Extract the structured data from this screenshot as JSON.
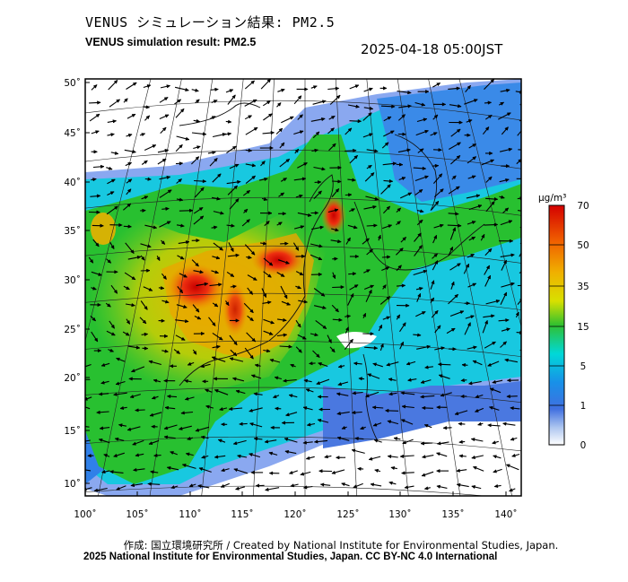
{
  "title_jp": "VENUS シミュレーション結果: PM2.5",
  "title_en": "VENUS simulation result: PM2.5",
  "timestamp": "2025-04-18 05:00JST",
  "credit_line1": "作成: 国立環境研究所 / Created by National Institute for Environmental Studies, Japan.",
  "credit_line2": "2025 National Institute for Environmental Studies, Japan. CC BY-NC 4.0 International",
  "colorbar": {
    "unit": "μg/m³",
    "ticks": [
      "70",
      "50",
      "35",
      "15",
      "5",
      "1",
      "0"
    ],
    "colors": [
      "#d40000",
      "#f07000",
      "#f0d000",
      "#20c020",
      "#00d8e8",
      "#2080f0",
      "#6aa0f0",
      "#ffffff"
    ]
  },
  "axes": {
    "lat_labels": [
      "50˚",
      "45˚",
      "40˚",
      "35˚",
      "30˚",
      "25˚",
      "20˚",
      "15˚",
      "10˚"
    ],
    "lon_labels": [
      "100˚",
      "105˚",
      "110˚",
      "115˚",
      "120˚",
      "125˚",
      "130˚",
      "135˚",
      "140˚"
    ]
  }
}
